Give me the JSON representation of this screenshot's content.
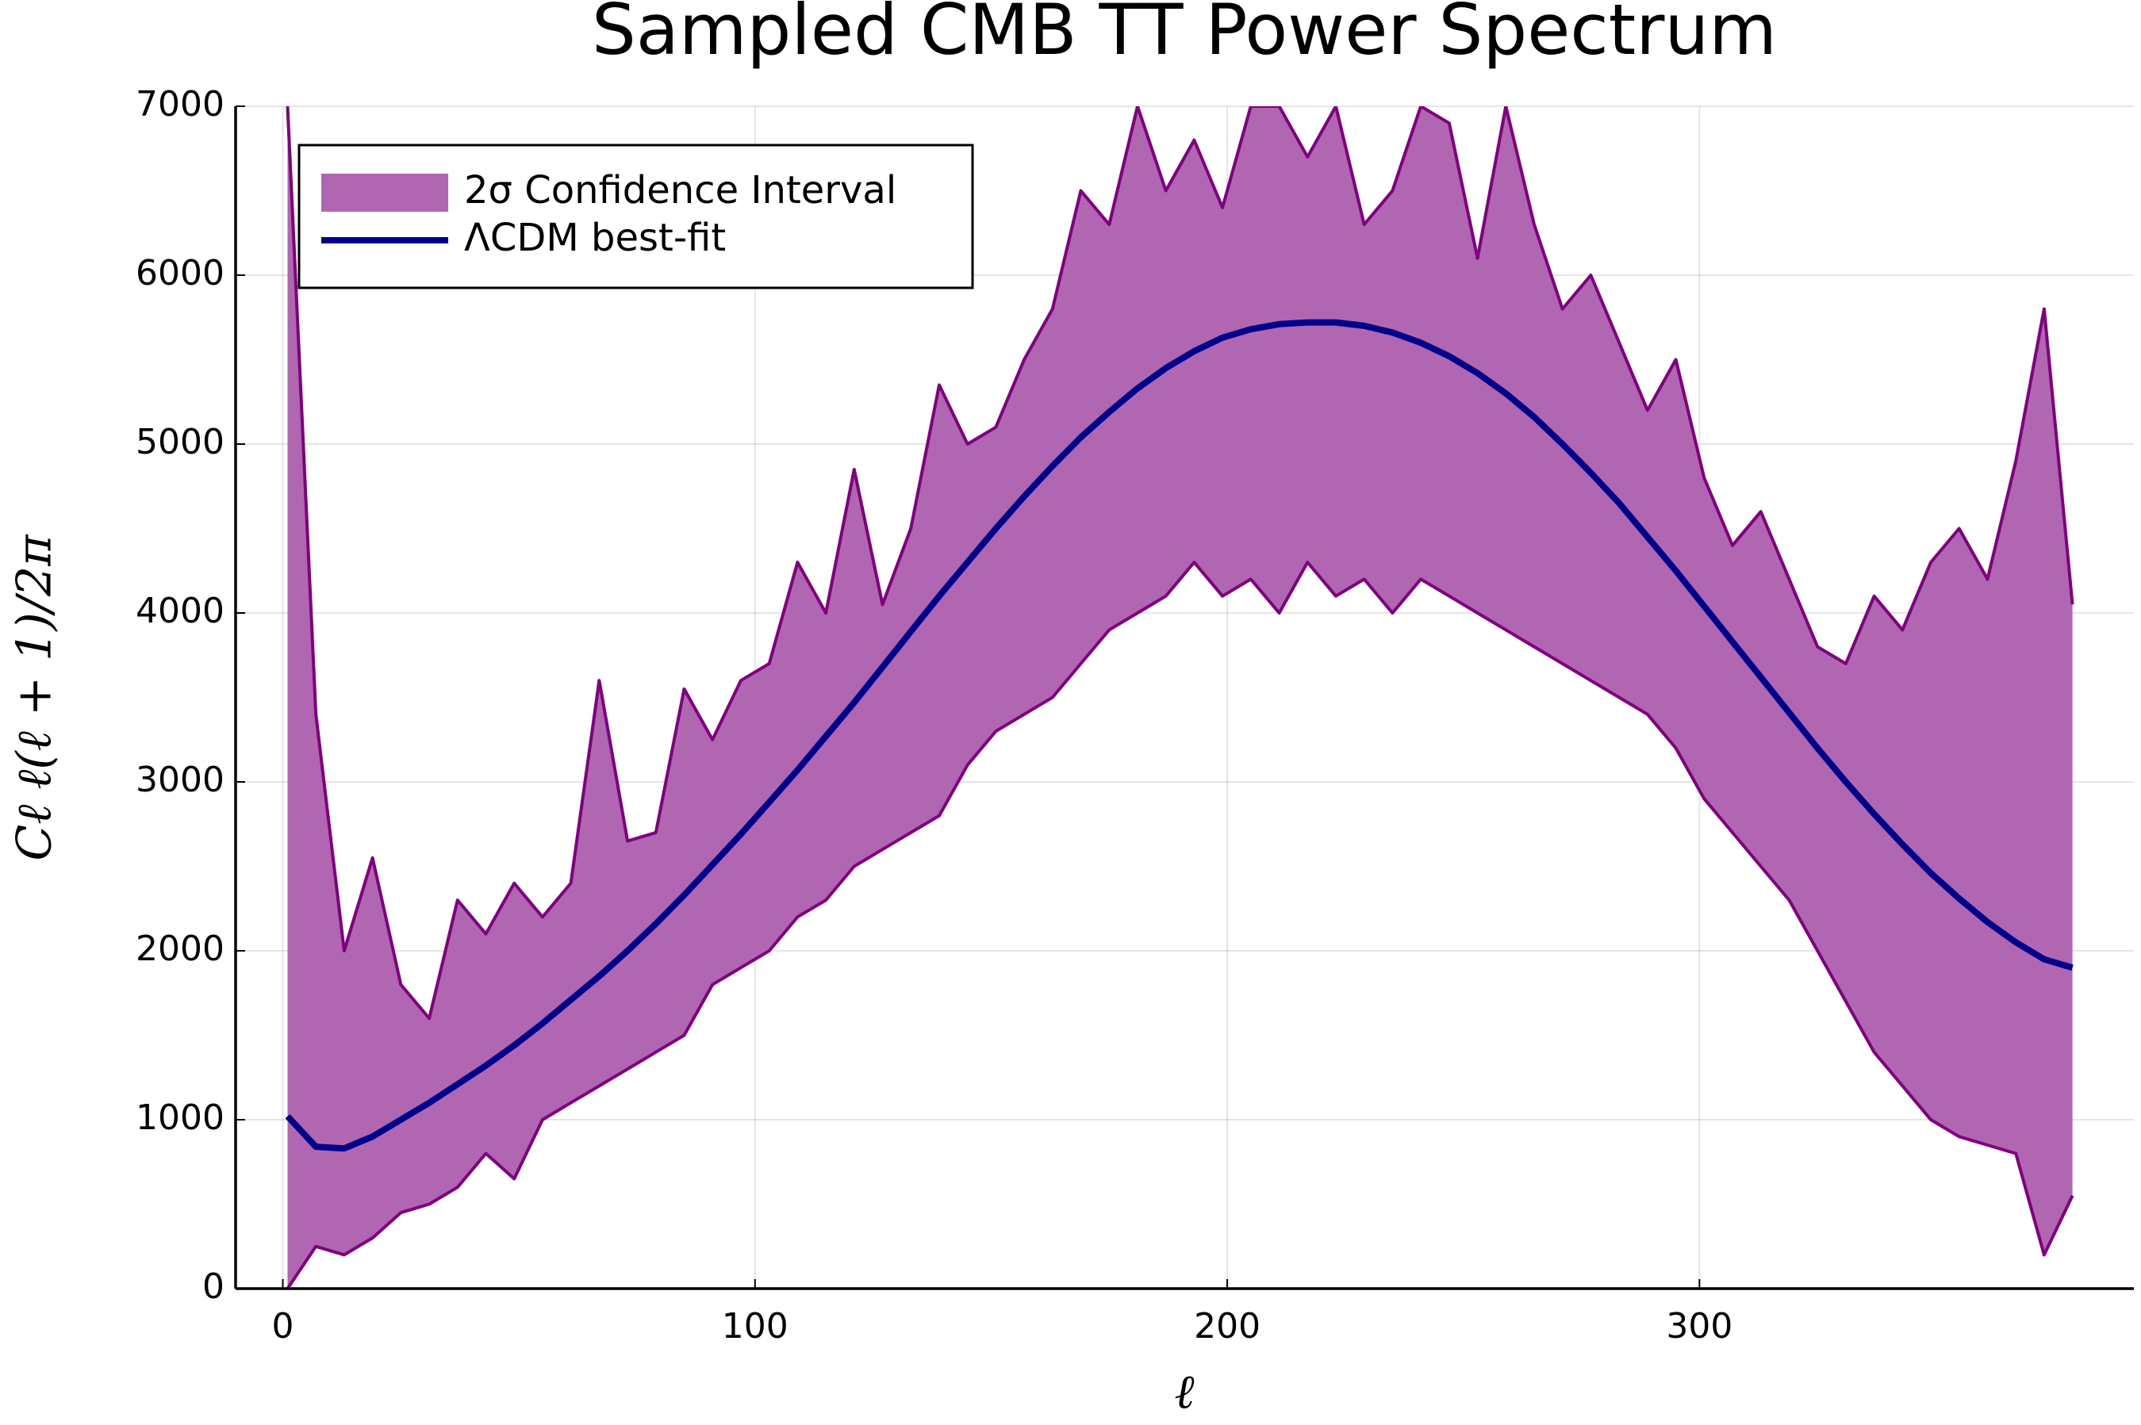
{
  "chart_data": {
    "type": "band-line",
    "title": "Sampled CMB TT Power Spectrum",
    "x_label": "ℓ",
    "y_label": "Cℓ ℓ(ℓ + 1)/2π",
    "x": [
      1,
      7,
      13,
      19,
      25,
      31,
      37,
      43,
      49,
      55,
      61,
      67,
      73,
      79,
      85,
      91,
      97,
      103,
      109,
      115,
      121,
      127,
      133,
      139,
      145,
      151,
      157,
      163,
      169,
      175,
      181,
      187,
      193,
      199,
      205,
      211,
      217,
      223,
      229,
      235,
      241,
      247,
      253,
      259,
      265,
      271,
      277,
      283,
      289,
      295,
      301,
      307,
      313,
      319,
      325,
      331,
      337,
      343,
      349,
      355,
      361,
      367,
      373,
      379
    ],
    "series": [
      {
        "name": "2σ Confidence Interval",
        "kind": "band",
        "color": "#800080",
        "fill": "#b066b0",
        "values": [
          7000,
          3400,
          2000,
          2550,
          1800,
          1600,
          2300,
          2100,
          2400,
          2200,
          2400,
          3600,
          2650,
          2700,
          3550,
          3250,
          3600,
          3700,
          4300,
          4000,
          4850,
          4050,
          4500,
          5350,
          5000,
          5100,
          5500,
          5800,
          6500,
          6300,
          7000,
          6500,
          6800,
          6400,
          7000,
          7000,
          6700,
          7000,
          6300,
          6500,
          7000,
          6900,
          6100,
          7000,
          6300,
          5800,
          6000,
          5600,
          5200,
          5500,
          4800,
          4400,
          4600,
          4200,
          3800,
          3700,
          4100,
          3900,
          4300,
          4500,
          4200,
          4900,
          5800,
          4050
        ],
        "lower": [
          0,
          250,
          200,
          300,
          450,
          500,
          600,
          800,
          650,
          1000,
          1100,
          1200,
          1300,
          1400,
          1500,
          1800,
          1900,
          2000,
          2200,
          2300,
          2500,
          2600,
          2700,
          2800,
          3100,
          3300,
          3400,
          3500,
          3700,
          3900,
          4000,
          4100,
          4300,
          4100,
          4200,
          4000,
          4300,
          4100,
          4200,
          4000,
          4200,
          4100,
          4000,
          3900,
          3800,
          3700,
          3600,
          3500,
          3400,
          3200,
          2900,
          2700,
          2500,
          2300,
          2000,
          1700,
          1400,
          1200,
          1000,
          900,
          850,
          800,
          200,
          550
        ]
      },
      {
        "name": "ΛCDM best-fit",
        "kind": "line",
        "color": "#00008b",
        "values": [
          1020,
          840,
          830,
          900,
          1000,
          1100,
          1210,
          1320,
          1440,
          1570,
          1710,
          1850,
          2000,
          2160,
          2330,
          2510,
          2690,
          2880,
          3070,
          3270,
          3470,
          3680,
          3890,
          4100,
          4300,
          4500,
          4690,
          4870,
          5040,
          5190,
          5330,
          5450,
          5550,
          5630,
          5680,
          5710,
          5720,
          5720,
          5700,
          5660,
          5600,
          5520,
          5420,
          5300,
          5160,
          5000,
          4830,
          4650,
          4450,
          4250,
          4040,
          3830,
          3620,
          3410,
          3200,
          3000,
          2810,
          2630,
          2460,
          2310,
          2170,
          2050,
          1950,
          1900
        ]
      }
    ],
    "xlim": [
      -10,
      392
    ],
    "xticks": [
      0,
      100,
      200,
      300
    ],
    "ylim": [
      0,
      7000
    ],
    "yticks": [
      0,
      1000,
      2000,
      3000,
      4000,
      5000,
      6000,
      7000
    ],
    "grid": true,
    "legend": "top-left"
  }
}
